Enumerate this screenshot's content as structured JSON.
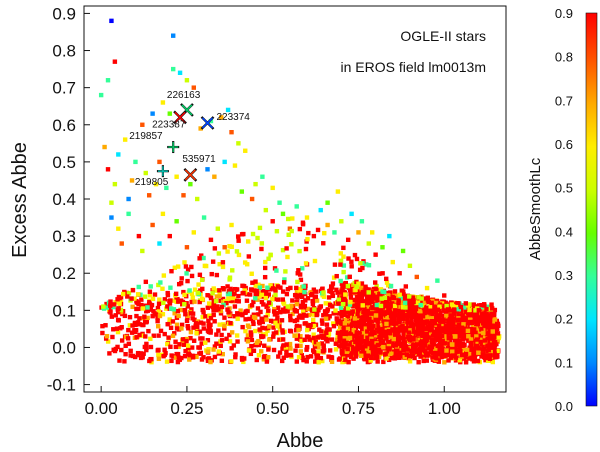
{
  "chart_data": {
    "type": "scatter",
    "xlabel": "Abbe",
    "ylabel": "Excess Abbe",
    "xlim": [
      -0.05,
      1.18
    ],
    "ylim": [
      -0.12,
      0.92
    ],
    "x_ticks": [
      "0.00",
      "0.25",
      "0.50",
      "0.75",
      "1.00"
    ],
    "y_ticks": [
      "-0.1",
      "0.0",
      "0.1",
      "0.2",
      "0.3",
      "0.4",
      "0.5",
      "0.6",
      "0.7",
      "0.8",
      "0.9"
    ],
    "annotation_lines": [
      "OGLE-II stars",
      "in EROS field lm0013m"
    ],
    "colorbar": {
      "label": "AbbeSmoothLc",
      "range": [
        0.0,
        0.9
      ],
      "ticks": [
        "0.0",
        "0.1",
        "0.2",
        "0.3",
        "0.4",
        "0.5",
        "0.6",
        "0.7",
        "0.8",
        "0.9"
      ],
      "colors": [
        "#0000ff",
        "#0088ff",
        "#00e5ff",
        "#33ff99",
        "#66ff00",
        "#ccff00",
        "#ffee00",
        "#ffaa00",
        "#ff5500",
        "#ff0000"
      ]
    },
    "highlighted_stars": [
      {
        "id": "226163",
        "x": 0.25,
        "y": 0.64,
        "color": "#00cc66",
        "marker": "x"
      },
      {
        "id": "223387",
        "x": 0.23,
        "y": 0.62,
        "color": "#ff0000",
        "marker": "x"
      },
      {
        "id": "223374",
        "x": 0.31,
        "y": 0.605,
        "color": "#0044ff",
        "marker": "x"
      },
      {
        "id": "219857",
        "x": 0.21,
        "y": 0.54,
        "color": "#00cc66",
        "marker": "+"
      },
      {
        "id": "535971",
        "x": 0.26,
        "y": 0.465,
        "color": "#ff3300",
        "marker": "x"
      },
      {
        "id": "219805",
        "x": 0.18,
        "y": 0.475,
        "color": "#00ccbb",
        "marker": "+"
      }
    ],
    "scatter_points": [
      [
        0.03,
        0.88,
        0.02
      ],
      [
        0.21,
        0.84,
        0.05
      ],
      [
        0.21,
        0.75,
        0.3
      ],
      [
        0.23,
        0.74,
        0.2
      ],
      [
        0.25,
        0.72,
        0.5
      ],
      [
        0.27,
        0.7,
        0.8
      ],
      [
        0.0,
        0.68,
        0.3
      ],
      [
        0.02,
        0.72,
        0.3
      ],
      [
        0.04,
        0.77,
        0.85
      ],
      [
        0.12,
        0.6,
        0.8
      ],
      [
        0.15,
        0.63,
        0.1
      ],
      [
        0.18,
        0.66,
        0.6
      ],
      [
        0.2,
        0.63,
        0.4
      ],
      [
        0.29,
        0.59,
        0.7
      ],
      [
        0.32,
        0.61,
        0.3
      ],
      [
        0.35,
        0.62,
        0.7
      ],
      [
        0.37,
        0.64,
        0.2
      ],
      [
        0.38,
        0.58,
        0.8
      ],
      [
        0.4,
        0.55,
        0.5
      ],
      [
        0.42,
        0.53,
        0.6
      ],
      [
        0.36,
        0.5,
        0.2
      ],
      [
        0.39,
        0.49,
        0.6
      ],
      [
        0.33,
        0.46,
        0.7
      ],
      [
        0.31,
        0.48,
        0.1
      ],
      [
        0.45,
        0.44,
        0.5
      ],
      [
        0.47,
        0.46,
        0.3
      ],
      [
        0.44,
        0.4,
        0.8
      ],
      [
        0.41,
        0.42,
        0.4
      ],
      [
        0.5,
        0.43,
        0.6
      ],
      [
        0.52,
        0.39,
        0.3
      ],
      [
        0.01,
        0.54,
        0.7
      ],
      [
        0.02,
        0.48,
        0.85
      ],
      [
        0.04,
        0.44,
        0.5
      ],
      [
        0.05,
        0.52,
        0.2
      ],
      [
        0.07,
        0.56,
        0.6
      ],
      [
        0.03,
        0.39,
        0.5
      ],
      [
        0.08,
        0.4,
        0.1
      ],
      [
        0.09,
        0.45,
        0.7
      ],
      [
        0.1,
        0.5,
        0.3
      ],
      [
        0.13,
        0.47,
        0.5
      ],
      [
        0.14,
        0.41,
        0.8
      ],
      [
        0.16,
        0.44,
        0.6
      ],
      [
        0.17,
        0.5,
        0.8
      ],
      [
        0.19,
        0.43,
        0.3
      ],
      [
        0.22,
        0.46,
        0.6
      ],
      [
        0.24,
        0.41,
        0.8
      ],
      [
        0.26,
        0.44,
        0.4
      ],
      [
        0.28,
        0.4,
        0.5
      ],
      [
        0.03,
        0.35,
        0.05
      ],
      [
        0.05,
        0.32,
        0.6
      ],
      [
        0.06,
        0.28,
        0.8
      ],
      [
        0.08,
        0.36,
        0.3
      ],
      [
        0.11,
        0.3,
        0.85
      ],
      [
        0.12,
        0.26,
        0.5
      ],
      [
        0.15,
        0.33,
        0.8
      ],
      [
        0.17,
        0.28,
        0.2
      ],
      [
        0.18,
        0.36,
        0.6
      ],
      [
        0.2,
        0.3,
        0.85
      ],
      [
        0.22,
        0.34,
        0.4
      ],
      [
        0.25,
        0.27,
        0.8
      ],
      [
        0.27,
        0.31,
        0.6
      ],
      [
        0.3,
        0.35,
        0.3
      ],
      [
        0.32,
        0.29,
        0.85
      ],
      [
        0.34,
        0.32,
        0.5
      ],
      [
        0.36,
        0.27,
        0.8
      ],
      [
        0.38,
        0.33,
        0.6
      ],
      [
        0.48,
        0.37,
        0.5
      ],
      [
        0.5,
        0.34,
        0.85
      ],
      [
        0.53,
        0.36,
        0.4
      ],
      [
        0.55,
        0.32,
        0.8
      ],
      [
        0.57,
        0.38,
        0.3
      ],
      [
        0.6,
        0.35,
        0.6
      ],
      [
        0.62,
        0.3,
        0.85
      ],
      [
        0.64,
        0.37,
        0.2
      ],
      [
        0.66,
        0.33,
        0.7
      ],
      [
        0.68,
        0.31,
        0.3
      ],
      [
        0.7,
        0.34,
        0.5
      ],
      [
        0.72,
        0.29,
        0.85
      ],
      [
        0.66,
        0.39,
        0.4
      ],
      [
        0.69,
        0.42,
        0.6
      ],
      [
        0.73,
        0.36,
        0.2
      ],
      [
        0.75,
        0.31,
        0.7
      ],
      [
        0.78,
        0.28,
        0.5
      ],
      [
        0.8,
        0.25,
        0.85
      ],
      [
        0.82,
        0.27,
        0.4
      ],
      [
        0.85,
        0.23,
        0.6
      ],
      [
        0.87,
        0.2,
        0.85
      ],
      [
        0.9,
        0.22,
        0.5
      ],
      [
        0.92,
        0.19,
        0.8
      ],
      [
        0.95,
        0.16,
        0.6
      ],
      [
        0.98,
        0.18,
        0.3
      ],
      [
        1.0,
        0.14,
        0.85
      ],
      [
        1.03,
        0.12,
        0.7
      ],
      [
        1.06,
        0.1,
        0.85
      ],
      [
        1.09,
        0.08,
        0.5
      ],
      [
        1.12,
        0.06,
        0.85
      ],
      [
        1.14,
        0.04,
        0.8
      ],
      [
        1.16,
        0.03,
        0.6
      ],
      [
        0.84,
        0.3,
        0.2
      ],
      [
        0.88,
        0.26,
        0.4
      ],
      [
        0.76,
        0.34,
        0.3
      ],
      [
        0.79,
        0.31,
        0.6
      ]
    ]
  }
}
